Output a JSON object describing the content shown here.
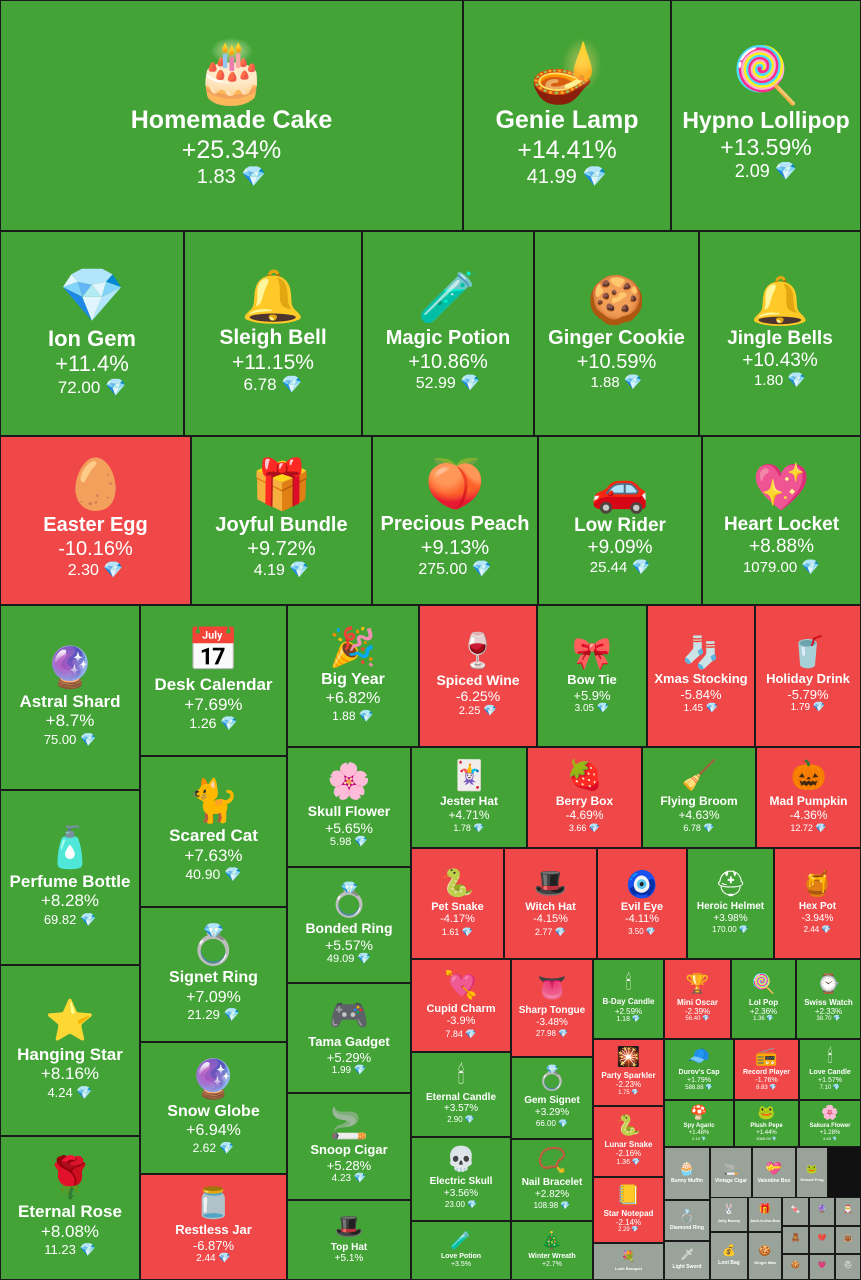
{
  "chart_data": {
    "type": "treemap",
    "colors": {
      "gain": "#43a336",
      "loss": "#f04848",
      "neutral": "#9aa39a"
    },
    "currency_icon": "diamond-icon",
    "items": [
      {
        "name": "Homemade Cake",
        "change": "+25.34%",
        "price": "1.83",
        "icon": "🎂"
      },
      {
        "name": "Genie Lamp",
        "change": "+14.41%",
        "price": "41.99",
        "icon": "🪔"
      },
      {
        "name": "Hypno Lollipop",
        "change": "+13.59%",
        "price": "2.09",
        "icon": "🍭"
      },
      {
        "name": "Ion Gem",
        "change": "+11.4%",
        "price": "72.00",
        "icon": "💎"
      },
      {
        "name": "Sleigh Bell",
        "change": "+11.15%",
        "price": "6.78",
        "icon": "🔔"
      },
      {
        "name": "Magic Potion",
        "change": "+10.86%",
        "price": "52.99",
        "icon": "🧪"
      },
      {
        "name": "Ginger Cookie",
        "change": "+10.59%",
        "price": "1.88",
        "icon": "🍪"
      },
      {
        "name": "Jingle Bells",
        "change": "+10.43%",
        "price": "1.80",
        "icon": "🔔"
      },
      {
        "name": "Easter Egg",
        "change": "-10.16%",
        "price": "2.30",
        "icon": "🥚"
      },
      {
        "name": "Joyful Bundle",
        "change": "+9.72%",
        "price": "4.19",
        "icon": "🎁"
      },
      {
        "name": "Precious Peach",
        "change": "+9.13%",
        "price": "275.00",
        "icon": "🍑"
      },
      {
        "name": "Low Rider",
        "change": "+9.09%",
        "price": "25.44",
        "icon": "🚗"
      },
      {
        "name": "Heart Locket",
        "change": "+8.88%",
        "price": "1079.00",
        "icon": "💖"
      },
      {
        "name": "Astral Shard",
        "change": "+8.7%",
        "price": "75.00",
        "icon": "🔮"
      },
      {
        "name": "Desk Calendar",
        "change": "+7.69%",
        "price": "1.26",
        "icon": "📅"
      },
      {
        "name": "Big Year",
        "change": "+6.82%",
        "price": "1.88",
        "icon": "🎉"
      },
      {
        "name": "Spiced Wine",
        "change": "-6.25%",
        "price": "2.25",
        "icon": "🍷"
      },
      {
        "name": "Bow Tie",
        "change": "+5.9%",
        "price": "3.05",
        "icon": "🎀"
      },
      {
        "name": "Xmas Stocking",
        "change": "-5.84%",
        "price": "1.45",
        "icon": "🧦"
      },
      {
        "name": "Holiday Drink",
        "change": "-5.79%",
        "price": "1.79",
        "icon": "🥤"
      },
      {
        "name": "Perfume Bottle",
        "change": "+8.28%",
        "price": "69.82",
        "icon": "🧴"
      },
      {
        "name": "Scared Cat",
        "change": "+7.63%",
        "price": "40.90",
        "icon": "🐈"
      },
      {
        "name": "Skull Flower",
        "change": "+5.65%",
        "price": "5.98",
        "icon": "🌸"
      },
      {
        "name": "Jester Hat",
        "change": "+4.71%",
        "price": "1.78",
        "icon": "🃏"
      },
      {
        "name": "Berry Box",
        "change": "-4.69%",
        "price": "3.66",
        "icon": "🍓"
      },
      {
        "name": "Flying Broom",
        "change": "+4.63%",
        "price": "6.78",
        "icon": "🧹"
      },
      {
        "name": "Mad Pumpkin",
        "change": "-4.36%",
        "price": "12.72",
        "icon": "🎃"
      },
      {
        "name": "Pet Snake",
        "change": "-4.17%",
        "price": "1.61",
        "icon": "🐍"
      },
      {
        "name": "Witch Hat",
        "change": "-4.15%",
        "price": "2.77",
        "icon": "🎩"
      },
      {
        "name": "Evil Eye",
        "change": "-4.11%",
        "price": "3.50",
        "icon": "🧿"
      },
      {
        "name": "Heroic Helmet",
        "change": "+3.98%",
        "price": "170.00",
        "icon": "⛑"
      },
      {
        "name": "Hex Pot",
        "change": "-3.94%",
        "price": "2.44",
        "icon": "🍯"
      },
      {
        "name": "Signet Ring",
        "change": "+7.09%",
        "price": "21.29",
        "icon": "💍"
      },
      {
        "name": "Bonded Ring",
        "change": "+5.57%",
        "price": "49.09",
        "icon": "💍"
      },
      {
        "name": "Cupid Charm",
        "change": "-3.9%",
        "price": "7.84",
        "icon": "💘"
      },
      {
        "name": "Sharp Tongue",
        "change": "-3.48%",
        "price": "27.98",
        "icon": "👅"
      },
      {
        "name": "B-Day Candle",
        "change": "+2.59%",
        "price": "1.18",
        "icon": "🕯"
      },
      {
        "name": "Mini Oscar",
        "change": "-2.39%",
        "price": "56.40",
        "icon": "🏆"
      },
      {
        "name": "Lol Pop",
        "change": "+2.36%",
        "price": "1.36",
        "icon": "🍭"
      },
      {
        "name": "Swiss Watch",
        "change": "+2.33%",
        "price": "38.70",
        "icon": "⌚"
      },
      {
        "name": "Hanging Star",
        "change": "+8.16%",
        "price": "4.24",
        "icon": "⭐"
      },
      {
        "name": "Snow Globe",
        "change": "+6.94%",
        "price": "2.62",
        "icon": "🔮"
      },
      {
        "name": "Tama Gadget",
        "change": "+5.29%",
        "price": "1.99",
        "icon": "🎮"
      },
      {
        "name": "Eternal Candle",
        "change": "+3.57%",
        "price": "2.90",
        "icon": "🕯"
      },
      {
        "name": "Gem Signet",
        "change": "+3.29%",
        "price": "66.00",
        "icon": "💍"
      },
      {
        "name": "Party Sparkler",
        "change": "-2.23%",
        "price": "1.75",
        "icon": "🎇"
      },
      {
        "name": "Durov's Cap",
        "change": "+1.79%",
        "price": "588.88",
        "icon": "🧢"
      },
      {
        "name": "Record Player",
        "change": "-1.76%",
        "price": "8.83",
        "icon": "📻"
      },
      {
        "name": "Love Candle",
        "change": "+1.57%",
        "price": "7.10",
        "icon": "🕯"
      },
      {
        "name": "Spy Agaric",
        "change": "+1.48%",
        "price": "2.19",
        "icon": "🍄"
      },
      {
        "name": "Plush Pepe",
        "change": "+1.44%",
        "price": "3069.00",
        "icon": "🐸"
      },
      {
        "name": "Sakura Flower",
        "change": "+1.28%",
        "price": "4.45",
        "icon": "🌸"
      },
      {
        "name": "Lunar Snake",
        "change": "-2.16%",
        "price": "1.36",
        "icon": "🐍"
      },
      {
        "name": "Snoop Cigar",
        "change": "+5.28%",
        "price": "4.23",
        "icon": "🚬"
      },
      {
        "name": "Electric Skull",
        "change": "+3.56%",
        "price": "23.00",
        "icon": "💀"
      },
      {
        "name": "Nail Bracelet",
        "change": "+2.82%",
        "price": "108.98",
        "icon": "📿"
      },
      {
        "name": "Star Notepad",
        "change": "-2.14%",
        "price": "2.29",
        "icon": "📒"
      },
      {
        "name": "Eternal Rose",
        "change": "+8.08%",
        "price": "11.23",
        "icon": "🌹"
      },
      {
        "name": "Restless Jar",
        "change": "-6.87%",
        "price": "2.44",
        "icon": "🫙"
      },
      {
        "name": "Top Hat",
        "change": "+5.1%",
        "price": "",
        "icon": "🎩"
      },
      {
        "name": "Love Potion",
        "change": "+3.5%",
        "price": "",
        "icon": "🧪"
      },
      {
        "name": "Winter Wreath",
        "change": "+2.7%",
        "price": "",
        "icon": "🎄"
      },
      {
        "name": "Lush Bouquet",
        "change": "",
        "price": "",
        "icon": "💐"
      },
      {
        "name": "Bunny Muffin",
        "change": "",
        "price": "",
        "icon": "🧁"
      },
      {
        "name": "Vintage Cigar",
        "change": "",
        "price": "",
        "icon": "🚬"
      },
      {
        "name": "Valentine Box",
        "change": "",
        "price": "",
        "icon": "💝"
      },
      {
        "name": "Kissed Frog",
        "change": "",
        "price": "",
        "icon": "🐸"
      },
      {
        "name": "Diamond Ring",
        "change": "",
        "price": "",
        "icon": "💍"
      },
      {
        "name": "Jelly Bunny",
        "change": "",
        "price": "",
        "icon": "🐰"
      },
      {
        "name": "Jack-in-the-Box",
        "change": "",
        "price": "",
        "icon": "🎁"
      },
      {
        "name": "Candy Cane",
        "change": "",
        "price": "",
        "icon": "🍬"
      },
      {
        "name": "Crystal Ball",
        "change": "",
        "price": "",
        "icon": "🔮"
      },
      {
        "name": "Santa Hat",
        "change": "",
        "price": "",
        "icon": "🎅"
      },
      {
        "name": "Loot Bag",
        "change": "",
        "price": "",
        "icon": "💰"
      },
      {
        "name": "Ginger Man",
        "change": "",
        "price": "",
        "icon": "🍪"
      },
      {
        "name": "Toy Bear",
        "change": "",
        "price": "",
        "icon": "🧸"
      },
      {
        "name": "Trapped Heart",
        "change": "",
        "price": "",
        "icon": "💔"
      },
      {
        "name": "Hanging Bag",
        "change": "",
        "price": "",
        "icon": "👜"
      },
      {
        "name": "Light Sword",
        "change": "",
        "price": "",
        "icon": "🗡"
      },
      {
        "name": "Cookie Heart",
        "change": "",
        "price": "",
        "icon": "🍪"
      },
      {
        "name": "Candy Heart",
        "change": "",
        "price": "",
        "icon": "💗"
      },
      {
        "name": "Neko Helmet",
        "change": "",
        "price": "",
        "icon": "⛑"
      },
      {
        "name": "Toy Crown",
        "change": "",
        "price": "",
        "icon": "👑"
      },
      {
        "name": "Mini Oscar II",
        "change": "",
        "price": "",
        "icon": "🏆"
      }
    ]
  }
}
